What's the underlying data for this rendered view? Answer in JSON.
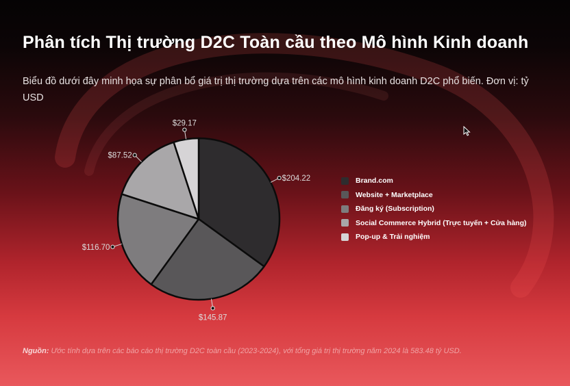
{
  "page": {
    "title": "Phân tích Thị trường D2C Toàn cầu theo Mô hình Kinh doanh",
    "subtitle": "Biểu đồ dưới đây minh họa sự phân bổ giá trị thị trường dựa trên các mô hình kinh doanh D2C phổ biến. Đơn vị: tỷ USD",
    "source_label": "Nguồn:",
    "source_text": " Ước tính dựa trên các báo cáo thị trường D2C toàn cầu (2023-2024), với tổng giá trị thị trường năm 2024 là 583.48 tỷ USD."
  },
  "chart_data": {
    "type": "pie",
    "labels": [
      "Brand.com",
      "Website + Marketplace",
      "Đăng ký (Subscription)",
      "Social Commerce Hybrid (Trực tuyến + Cửa hàng)",
      "Pop-up & Trải nghiệm"
    ],
    "values": [
      204.22,
      145.87,
      116.7,
      87.52,
      29.17
    ],
    "value_labels": [
      "$204.22",
      "$145.87",
      "$116.70",
      "$87.52",
      "$29.17"
    ],
    "colors": [
      "#2e2c2e",
      "#595759",
      "#7e7c7e",
      "#a9a7a9",
      "#d6d4d6"
    ],
    "legend_position": "right"
  }
}
